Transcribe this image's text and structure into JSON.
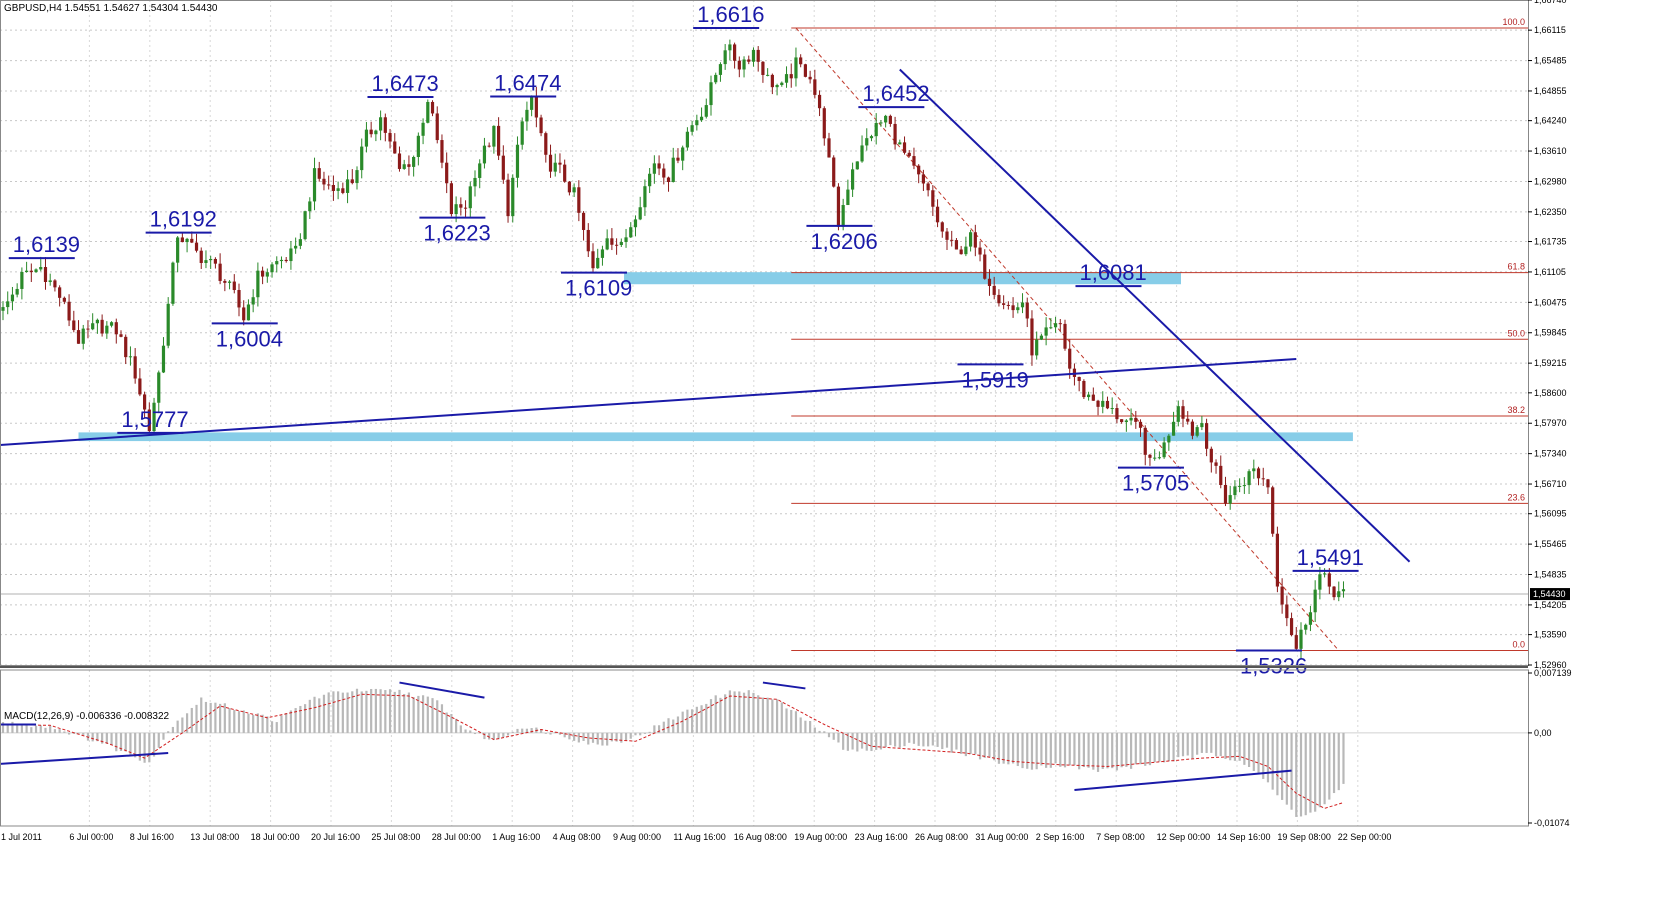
{
  "chart_header": {
    "title": "GBPUSD,H4  1.54551 1.54627 1.54304 1.54430",
    "indicator_title": "MACD(12,26,9) -0.006336 -0.008322"
  },
  "price_axis": {
    "labels": [
      "1,66740",
      "1,66115",
      "1,65485",
      "1,64855",
      "1,64240",
      "1,63610",
      "1,62980",
      "1,62350",
      "1,61735",
      "1,61105",
      "1,60475",
      "1,59845",
      "1,59215",
      "1,58600",
      "1,57970",
      "1,57340",
      "1,56710",
      "1,56095",
      "1,55465",
      "1,54835",
      "1,54205",
      "1,53590",
      "1,52960"
    ],
    "current_label": "1,54430",
    "current_price": 1.5443
  },
  "macd_axis": {
    "labels": [
      "0,007139",
      "0,00",
      "-0,01074"
    ],
    "max": 0.007139,
    "min": -0.01074
  },
  "time_axis": {
    "labels": [
      "1 Jul 2011",
      "6 Jul 00:00",
      "8 Jul 16:00",
      "13 Jul 08:00",
      "18 Jul 00:00",
      "20 Jul 16:00",
      "25 Jul 08:00",
      "28 Jul 00:00",
      "1 Aug 16:00",
      "4 Aug 08:00",
      "9 Aug 00:00",
      "11 Aug 16:00",
      "16 Aug 08:00",
      "19 Aug 00:00",
      "23 Aug 16:00",
      "26 Aug 08:00",
      "31 Aug 00:00",
      "2 Sep 16:00",
      "7 Sep 08:00",
      "12 Sep 00:00",
      "14 Sep 16:00",
      "19 Sep 08:00",
      "22 Sep 00:00"
    ]
  },
  "fibonacci": {
    "levels": [
      {
        "label": "100.0",
        "price": 1.6616
      },
      {
        "label": "61.8",
        "price": 1.6109
      },
      {
        "label": "50.0",
        "price": 1.5971
      },
      {
        "label": "38.2",
        "price": 1.5812
      },
      {
        "label": "23.6",
        "price": 1.5631
      },
      {
        "label": "0.0",
        "price": 1.5326
      }
    ],
    "color": "#c0392b"
  },
  "swing_labels": [
    {
      "text": "1,6139",
      "price": 1.6139,
      "bar": 8,
      "pos": "above"
    },
    {
      "text": "1,6192",
      "price": 1.6192,
      "bar": 37,
      "pos": "above"
    },
    {
      "text": "1,6004",
      "price": 1.6004,
      "bar": 51,
      "pos": "below"
    },
    {
      "text": "1,5777",
      "price": 1.5777,
      "bar": 31,
      "pos": "above"
    },
    {
      "text": "1,6473",
      "price": 1.6473,
      "bar": 84,
      "pos": "above"
    },
    {
      "text": "1,6223",
      "price": 1.6223,
      "bar": 95,
      "pos": "below"
    },
    {
      "text": "1,6474",
      "price": 1.6474,
      "bar": 110,
      "pos": "above"
    },
    {
      "text": "1,6109",
      "price": 1.6109,
      "bar": 125,
      "pos": "below"
    },
    {
      "text": "1,6616",
      "price": 1.6616,
      "bar": 153,
      "pos": "above"
    },
    {
      "text": "1,6206",
      "price": 1.6206,
      "bar": 177,
      "pos": "below"
    },
    {
      "text": "1,6452",
      "price": 1.6452,
      "bar": 188,
      "pos": "above"
    },
    {
      "text": "1,6081",
      "price": 1.6081,
      "bar": 234,
      "pos": "above"
    },
    {
      "text": "1,5919",
      "price": 1.5919,
      "bar": 209,
      "pos": "below"
    },
    {
      "text": "1,5705",
      "price": 1.5705,
      "bar": 243,
      "pos": "below"
    },
    {
      "text": "1,5491",
      "price": 1.5491,
      "bar": 280,
      "pos": "above"
    },
    {
      "text": "1,5326",
      "price": 1.5326,
      "bar": 268,
      "pos": "below"
    }
  ],
  "annotation_color": "#1a1aa8",
  "zone_color": "#87cde8",
  "up_color": "#2a8a2a",
  "down_color": "#8b1a1a",
  "chart_data": {
    "type": "candlestick",
    "symbol": "GBPUSD",
    "timeframe": "H4",
    "ylim": [
      1.5296,
      1.6674
    ],
    "anchors": [
      [
        0,
        1.603
      ],
      [
        4,
        1.61
      ],
      [
        8,
        1.612
      ],
      [
        12,
        1.606
      ],
      [
        16,
        1.597
      ],
      [
        20,
        1.6
      ],
      [
        24,
        1.599
      ],
      [
        28,
        1.59
      ],
      [
        31,
        1.5785
      ],
      [
        33,
        1.59
      ],
      [
        35,
        1.604
      ],
      [
        37,
        1.619
      ],
      [
        41,
        1.615
      ],
      [
        45,
        1.612
      ],
      [
        49,
        1.606
      ],
      [
        51,
        1.6015
      ],
      [
        54,
        1.61
      ],
      [
        58,
        1.613
      ],
      [
        62,
        1.615
      ],
      [
        66,
        1.631
      ],
      [
        70,
        1.628
      ],
      [
        74,
        1.63
      ],
      [
        77,
        1.639
      ],
      [
        80,
        1.643
      ],
      [
        84,
        1.632
      ],
      [
        87,
        1.635
      ],
      [
        90,
        1.647
      ],
      [
        92,
        1.638
      ],
      [
        95,
        1.6235
      ],
      [
        98,
        1.625
      ],
      [
        100,
        1.632
      ],
      [
        104,
        1.64
      ],
      [
        107,
        1.624
      ],
      [
        110,
        1.642
      ],
      [
        112,
        1.647
      ],
      [
        115,
        1.634
      ],
      [
        118,
        1.632
      ],
      [
        121,
        1.627
      ],
      [
        125,
        1.611
      ],
      [
        128,
        1.619
      ],
      [
        131,
        1.616
      ],
      [
        135,
        1.626
      ],
      [
        138,
        1.634
      ],
      [
        141,
        1.631
      ],
      [
        145,
        1.64
      ],
      [
        149,
        1.646
      ],
      [
        153,
        1.658
      ],
      [
        156,
        1.654
      ],
      [
        159,
        1.657
      ],
      [
        162,
        1.651
      ],
      [
        165,
        1.649
      ],
      [
        168,
        1.654
      ],
      [
        171,
        1.652
      ],
      [
        174,
        1.64
      ],
      [
        177,
        1.621
      ],
      [
        180,
        1.633
      ],
      [
        184,
        1.64
      ],
      [
        187,
        1.643
      ],
      [
        190,
        1.637
      ],
      [
        193,
        1.632
      ],
      [
        196,
        1.627
      ],
      [
        199,
        1.619
      ],
      [
        202,
        1.615
      ],
      [
        205,
        1.618
      ],
      [
        208,
        1.611
      ],
      [
        211,
        1.606
      ],
      [
        214,
        1.603
      ],
      [
        216,
        1.605
      ],
      [
        218,
        1.595
      ],
      [
        221,
        1.598
      ],
      [
        224,
        1.6
      ],
      [
        226,
        1.591
      ],
      [
        229,
        1.586
      ],
      [
        232,
        1.584
      ],
      [
        235,
        1.582
      ],
      [
        238,
        1.58
      ],
      [
        241,
        1.578
      ],
      [
        243,
        1.571
      ],
      [
        246,
        1.575
      ],
      [
        249,
        1.584
      ],
      [
        252,
        1.578
      ],
      [
        254,
        1.58
      ],
      [
        256,
        1.572
      ],
      [
        259,
        1.564
      ],
      [
        262,
        1.567
      ],
      [
        265,
        1.57
      ],
      [
        268,
        1.567
      ],
      [
        270,
        1.547
      ],
      [
        272,
        1.54
      ],
      [
        274,
        1.533
      ],
      [
        276,
        1.539
      ],
      [
        279,
        1.548
      ],
      [
        282,
        1.545
      ],
      [
        284,
        1.5443
      ]
    ],
    "macd": {
      "histogram_anchors": [
        [
          0,
          0.0012
        ],
        [
          10,
          0.0008
        ],
        [
          20,
          -0.001
        ],
        [
          31,
          -0.0035
        ],
        [
          36,
          0.001
        ],
        [
          42,
          0.004
        ],
        [
          50,
          0.0028
        ],
        [
          58,
          0.0015
        ],
        [
          66,
          0.0042
        ],
        [
          72,
          0.005
        ],
        [
          84,
          0.005
        ],
        [
          92,
          0.0038
        ],
        [
          98,
          0.0005
        ],
        [
          104,
          -0.001
        ],
        [
          110,
          0.0008
        ],
        [
          118,
          -0.0002
        ],
        [
          126,
          -0.0015
        ],
        [
          134,
          -0.0005
        ],
        [
          142,
          0.0018
        ],
        [
          150,
          0.004
        ],
        [
          156,
          0.0052
        ],
        [
          164,
          0.0038
        ],
        [
          172,
          0.0008
        ],
        [
          178,
          -0.0018
        ],
        [
          184,
          -0.0022
        ],
        [
          192,
          -0.0012
        ],
        [
          200,
          -0.002
        ],
        [
          208,
          -0.003
        ],
        [
          216,
          -0.0042
        ],
        [
          224,
          -0.0038
        ],
        [
          232,
          -0.0045
        ],
        [
          240,
          -0.004
        ],
        [
          248,
          -0.0032
        ],
        [
          256,
          -0.0025
        ],
        [
          262,
          -0.0032
        ],
        [
          266,
          -0.0048
        ],
        [
          270,
          -0.0075
        ],
        [
          274,
          -0.0098
        ],
        [
          278,
          -0.0095
        ],
        [
          284,
          -0.0063
        ]
      ],
      "signal_anchors": [
        [
          0,
          0.001
        ],
        [
          10,
          0.0009
        ],
        [
          22,
          -0.0012
        ],
        [
          30,
          -0.003
        ],
        [
          38,
          0.0
        ],
        [
          46,
          0.0032
        ],
        [
          56,
          0.0018
        ],
        [
          66,
          0.003
        ],
        [
          76,
          0.0046
        ],
        [
          86,
          0.0044
        ],
        [
          96,
          0.0016
        ],
        [
          104,
          -0.0008
        ],
        [
          114,
          0.0004
        ],
        [
          124,
          -0.0006
        ],
        [
          134,
          -0.001
        ],
        [
          144,
          0.0014
        ],
        [
          154,
          0.0044
        ],
        [
          164,
          0.004
        ],
        [
          174,
          0.001
        ],
        [
          184,
          -0.0016
        ],
        [
          194,
          -0.002
        ],
        [
          204,
          -0.0024
        ],
        [
          214,
          -0.0034
        ],
        [
          224,
          -0.0038
        ],
        [
          234,
          -0.004
        ],
        [
          244,
          -0.0035
        ],
        [
          254,
          -0.003
        ],
        [
          262,
          -0.0028
        ],
        [
          268,
          -0.004
        ],
        [
          274,
          -0.0072
        ],
        [
          280,
          -0.009
        ],
        [
          284,
          -0.0083
        ]
      ]
    }
  }
}
